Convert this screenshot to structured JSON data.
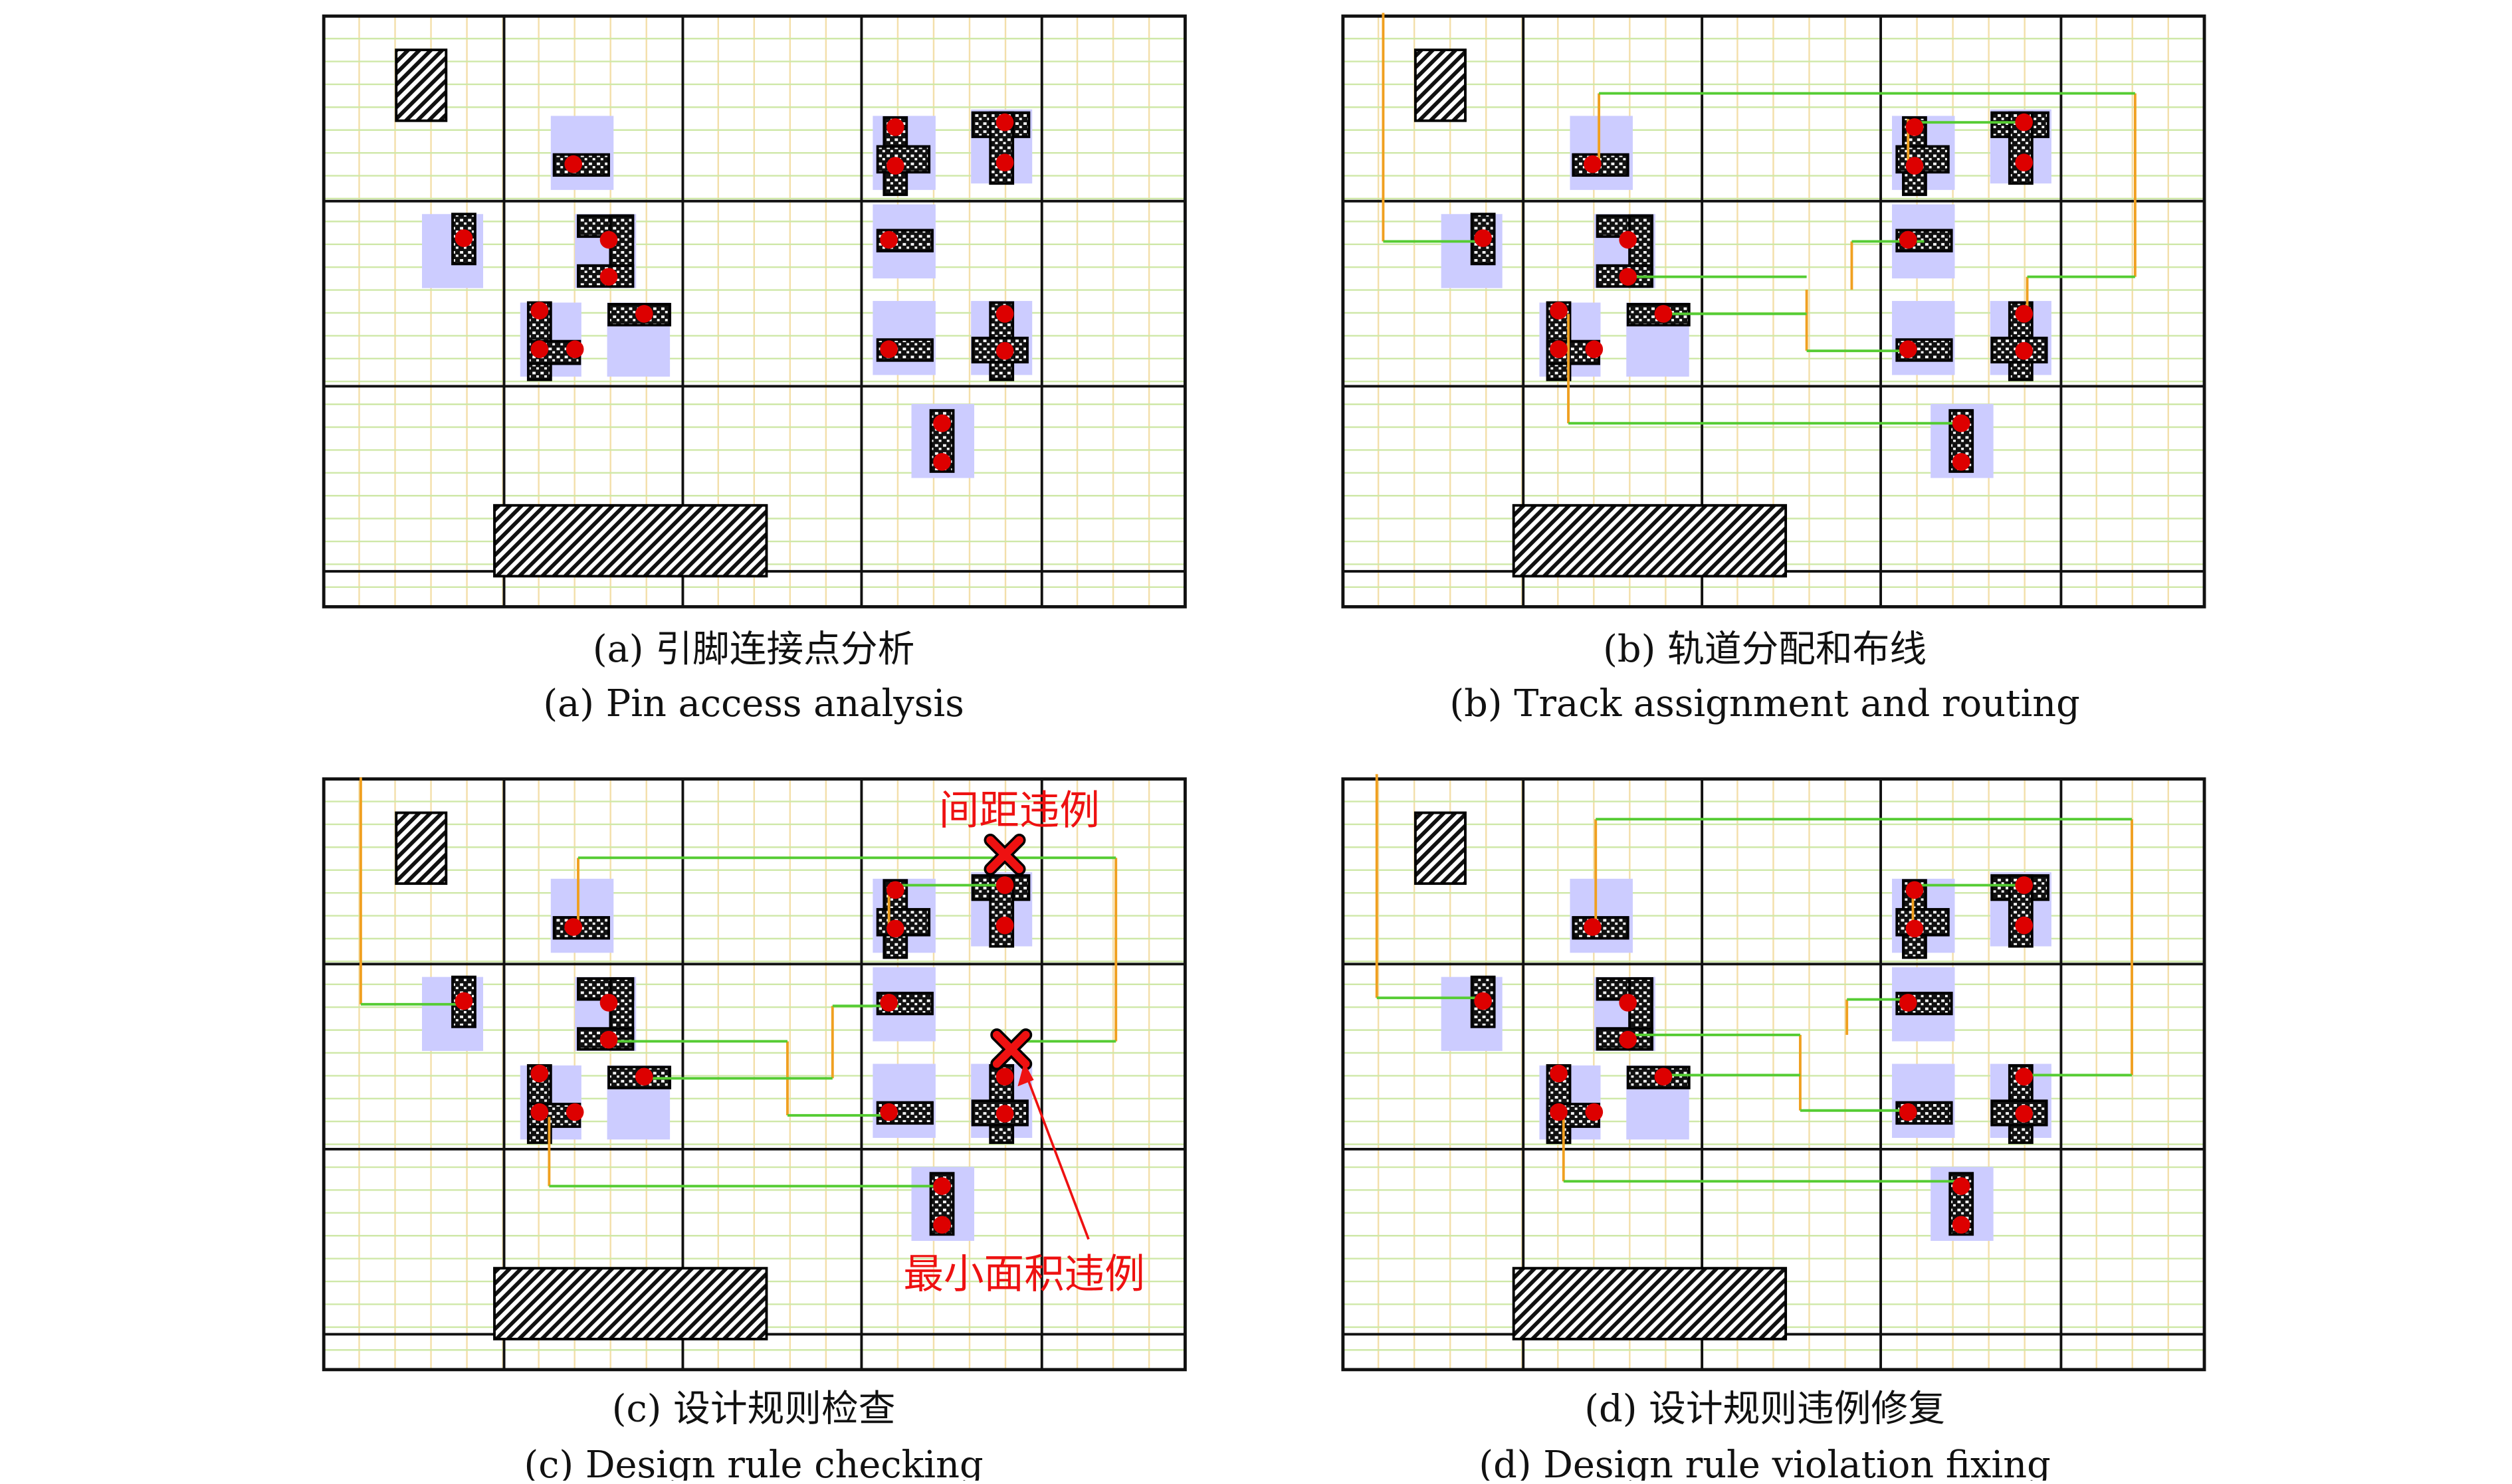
{
  "panels": [
    {
      "id": "a",
      "caption_zh": "(a) 引脚连接点分析",
      "caption_en": "(a) Pin access analysis",
      "show_routes": false,
      "annotations": []
    },
    {
      "id": "b",
      "caption_zh": "(b) 轨道分配和布线",
      "caption_en": "(b) Track assignment and routing",
      "show_routes": true,
      "annotations": []
    },
    {
      "id": "c",
      "caption_zh": "(c) 设计规则检查",
      "caption_en": "(c) Design rule checking",
      "show_routes": true,
      "annotations": [
        {
          "text": "间距违例",
          "marker": "spacing-violation"
        },
        {
          "text": "最小面积违例",
          "marker": "min-area-violation"
        }
      ]
    },
    {
      "id": "d",
      "caption_zh": "(d) 设计规则违例修复",
      "caption_en": "(d) Design rule violation fixing",
      "show_routes": true,
      "annotations": []
    }
  ],
  "colors": {
    "grid_fine_horizontal": "#cfe8a8",
    "grid_fine_vertical": "#f3dfaa",
    "grid_coarse": "#111111",
    "pin_box": "#ccccff",
    "pin_dot": "#dd0000",
    "route_horizontal": "#55cc33",
    "route_vertical": "#f0a020",
    "violation_marker": "#ee1111",
    "annotation_text": "#ee1111"
  },
  "icons": {
    "blockage": "hatched-blockage",
    "violation": "cross-marker",
    "pin_access": "red-dot"
  }
}
